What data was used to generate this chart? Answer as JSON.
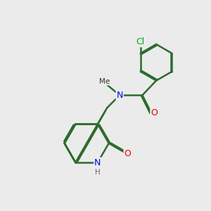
{
  "background_color": "#ebebeb",
  "bond_color": "#2d6b2d",
  "bond_width": 1.8,
  "atom_colors": {
    "N": "#0000ee",
    "O": "#ee0000",
    "Cl": "#00aa00",
    "C": "#111111",
    "H": "#666666"
  },
  "figsize": [
    3.0,
    3.0
  ],
  "dpi": 100
}
